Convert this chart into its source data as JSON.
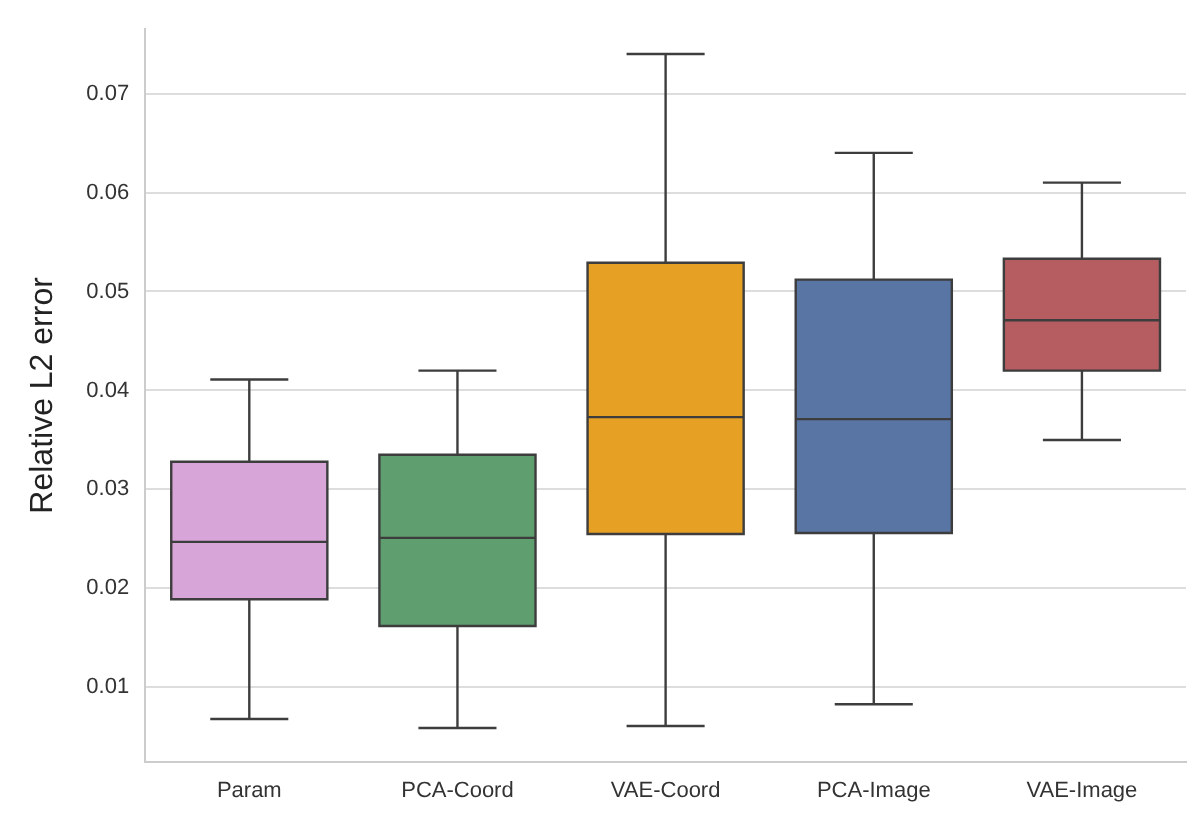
{
  "chart_data": {
    "type": "box",
    "ylabel": "Relative L2 error",
    "categories": [
      "Param",
      "PCA-Coord",
      "VAE-Coord",
      "PCA-Image",
      "VAE-Image"
    ],
    "colors": [
      "#d7a5d7",
      "#5f9e6e",
      "#e6a024",
      "#5875a4",
      "#b55d60"
    ],
    "boxes": [
      {
        "low": 0.0068,
        "q1": 0.0189,
        "median": 0.0247,
        "q3": 0.0328,
        "high": 0.0411
      },
      {
        "low": 0.0059,
        "q1": 0.0162,
        "median": 0.0251,
        "q3": 0.0335,
        "high": 0.042
      },
      {
        "low": 0.0061,
        "q1": 0.0255,
        "median": 0.0373,
        "q3": 0.0529,
        "high": 0.074
      },
      {
        "low": 0.0083,
        "q1": 0.0256,
        "median": 0.0371,
        "q3": 0.0512,
        "high": 0.064
      },
      {
        "low": 0.035,
        "q1": 0.042,
        "median": 0.0471,
        "q3": 0.0533,
        "high": 0.061
      }
    ],
    "ylim": [
      0.0025,
      0.0765
    ],
    "yticks": [
      0.01,
      0.02,
      0.03,
      0.04,
      0.05,
      0.06,
      0.07
    ],
    "grid": "y",
    "legend": false
  }
}
